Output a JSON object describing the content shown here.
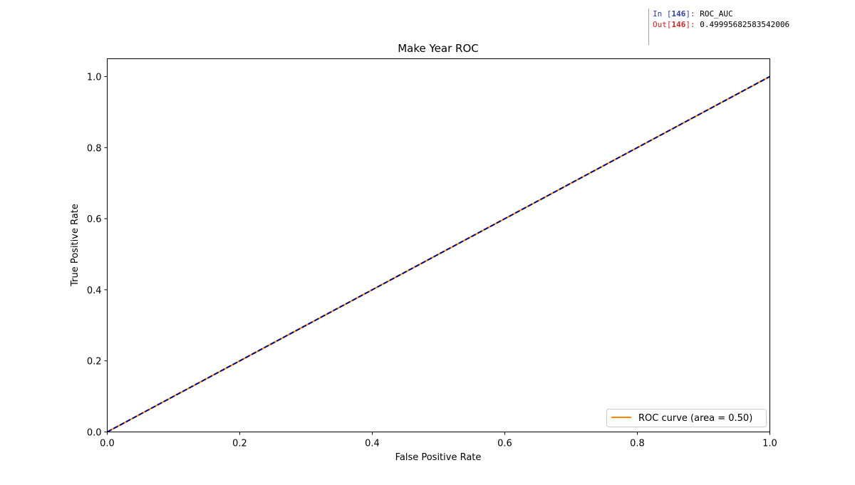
{
  "notebook": {
    "in_prompt": "In",
    "in_number": "146",
    "in_code": "ROC_AUC",
    "out_prompt": "Out",
    "out_number": "146",
    "out_value": "0.49995682583542006"
  },
  "chart_data": {
    "type": "line",
    "title": "Make Year ROC",
    "xlabel": "False Positive Rate",
    "ylabel": "True Positive Rate",
    "xlim": [
      0.0,
      1.0
    ],
    "ylim": [
      0.0,
      1.05
    ],
    "xticks": [
      "0.0",
      "0.2",
      "0.4",
      "0.6",
      "0.8",
      "1.0"
    ],
    "yticks": [
      "0.0",
      "0.2",
      "0.4",
      "0.6",
      "0.8",
      "1.0"
    ],
    "grid": false,
    "legend_position": "lower right",
    "series": [
      {
        "name": "ROC curve (area = 0.50)",
        "color": "#ff8c00",
        "style": "solid",
        "x": [
          0.0,
          1.0
        ],
        "y": [
          0.0,
          1.0
        ]
      },
      {
        "color": "#000080",
        "style": "dashed",
        "x": [
          0.0,
          1.0
        ],
        "y": [
          0.0,
          1.0
        ]
      }
    ]
  }
}
